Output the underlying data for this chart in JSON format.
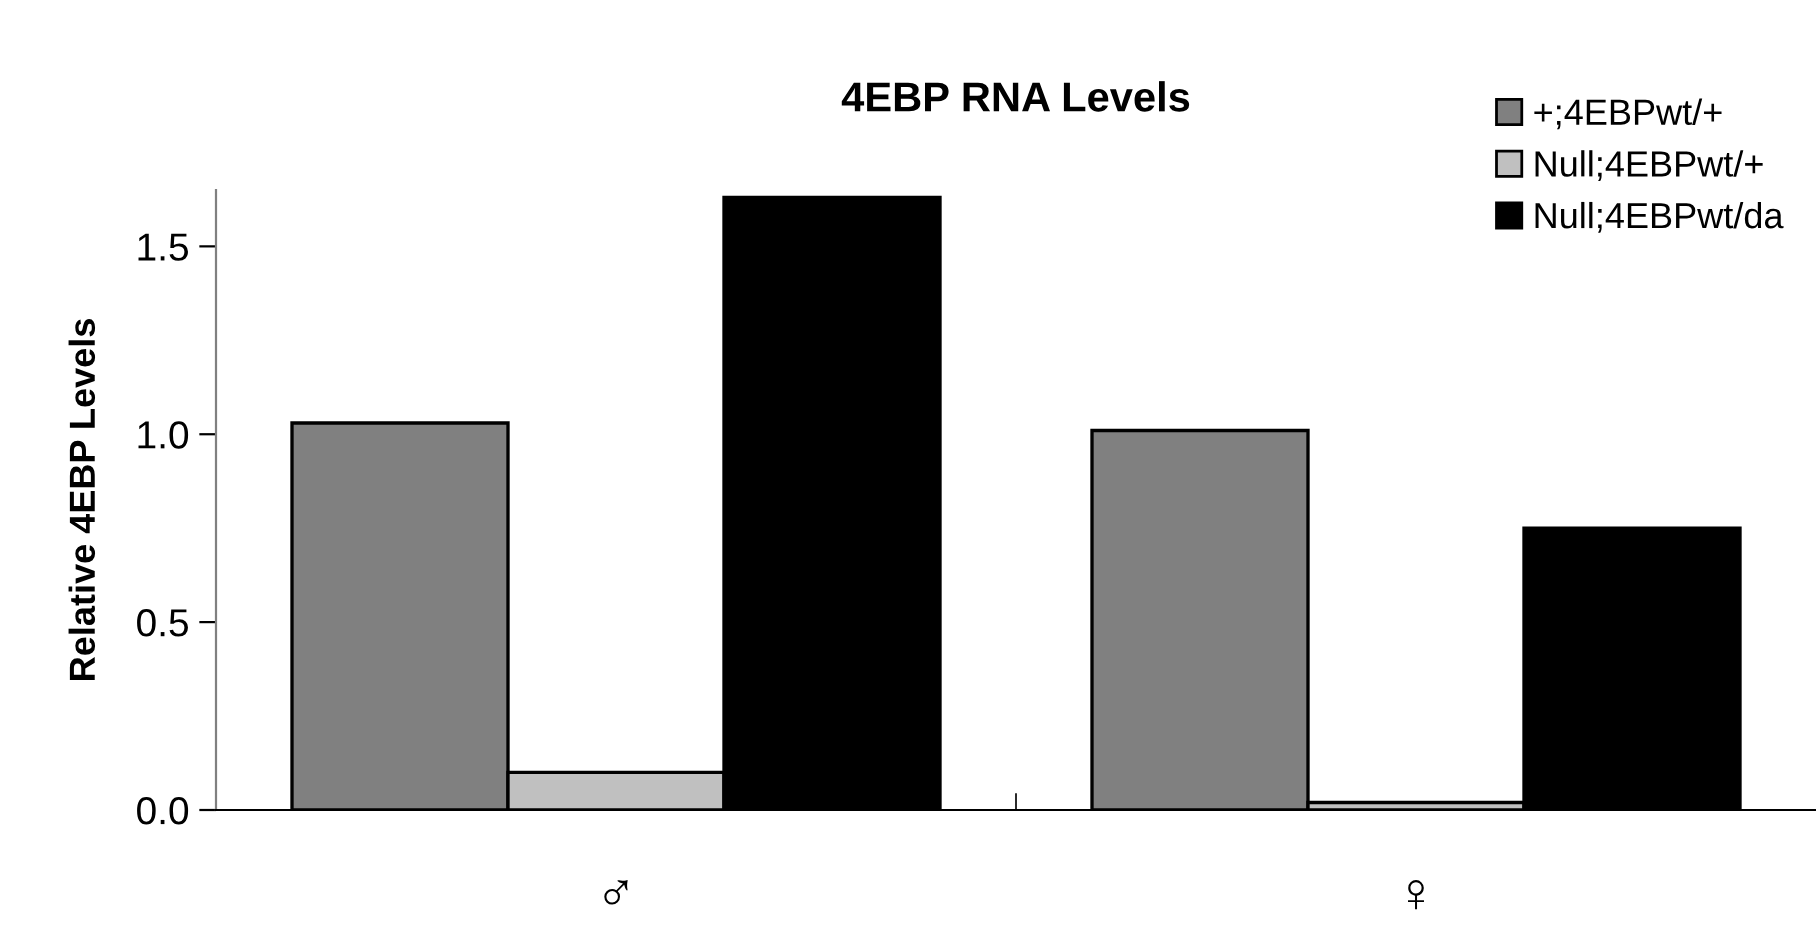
{
  "chart_data": {
    "type": "bar",
    "title": "4EBP RNA Levels",
    "ylabel": "Relative 4EBP Levels",
    "categories": [
      "♂",
      "♀"
    ],
    "series": [
      {
        "name": "+;4EBPwt/+",
        "color": "#808080",
        "values": [
          1.03,
          1.01
        ]
      },
      {
        "name": "Null;4EBPwt/+",
        "color": "#c0c0c0",
        "values": [
          0.1,
          0.02
        ]
      },
      {
        "name": "Null;4EBPwt/da",
        "color": "#000000",
        "values": [
          1.63,
          0.75
        ]
      }
    ],
    "ylim": [
      0,
      1.65
    ],
    "yticks": [
      {
        "value": 0,
        "label": "0.0"
      },
      0.5,
      {
        "value": 1,
        "label": "1.0"
      },
      1.5
    ],
    "grid": false,
    "legend": "top right"
  }
}
